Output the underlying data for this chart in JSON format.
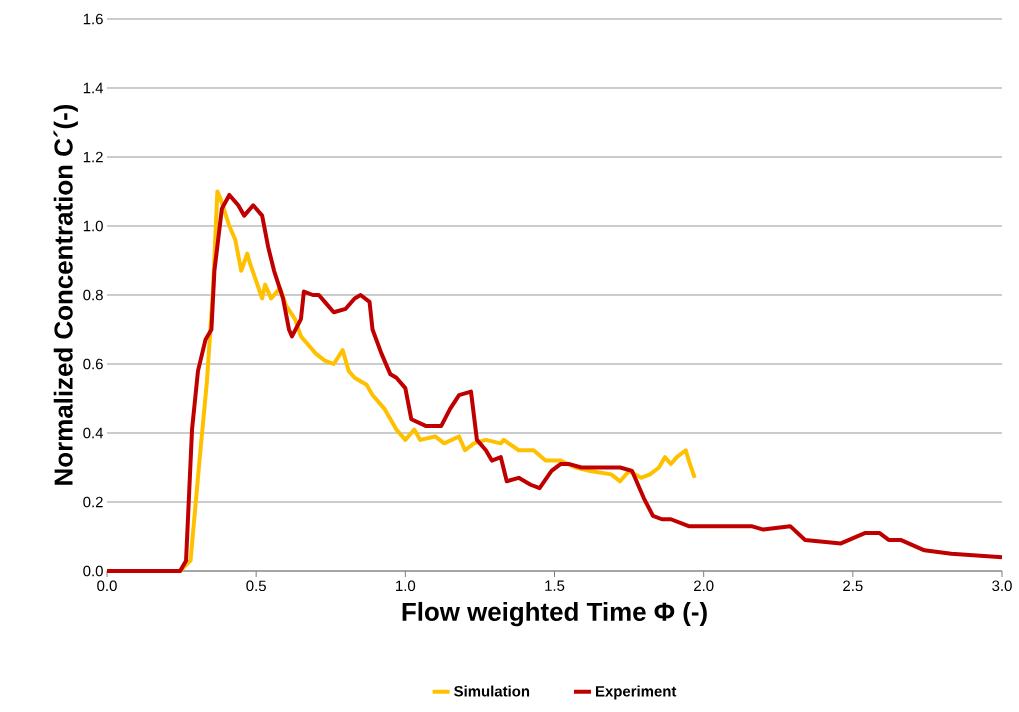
{
  "chart_data": {
    "type": "line",
    "xlabel": "Flow weighted Time  Φ (-)",
    "ylabel": "Normalized Concentration C´(-)",
    "xlim": [
      0,
      3.0
    ],
    "ylim": [
      0,
      1.6
    ],
    "xticks": [
      {
        "value": 0,
        "label": "0.0"
      },
      {
        "value": 0.5,
        "label": "0.5"
      },
      {
        "value": 1,
        "label": "1.0"
      },
      {
        "value": 1.5,
        "label": "1.5"
      },
      {
        "value": 2,
        "label": "2.0"
      },
      {
        "value": 2.5,
        "label": "2.5"
      },
      {
        "value": 3,
        "label": "3.0"
      }
    ],
    "yticks": [
      {
        "value": 0,
        "label": "0.0"
      },
      {
        "value": 0.2,
        "label": "0.2"
      },
      {
        "value": 0.4,
        "label": "0.4"
      },
      {
        "value": 0.6,
        "label": "0.6"
      },
      {
        "value": 0.8,
        "label": "0.8"
      },
      {
        "value": 1.0,
        "label": "1.0"
      },
      {
        "value": 1.2,
        "label": "1.2"
      },
      {
        "value": 1.4,
        "label": "1.4"
      },
      {
        "value": 1.6,
        "label": "1.6"
      }
    ],
    "grid": "y",
    "legend": "bottom",
    "marker": "none",
    "line_style": "solid",
    "series": [
      {
        "name": "Simulation",
        "color": "#ffc000",
        "x": [
          0,
          0.245,
          0.28,
          0.31,
          0.335,
          0.355,
          0.37,
          0.38,
          0.41,
          0.43,
          0.45,
          0.47,
          0.48,
          0.5,
          0.52,
          0.53,
          0.55,
          0.58,
          0.6,
          0.63,
          0.65,
          0.67,
          0.7,
          0.73,
          0.76,
          0.79,
          0.81,
          0.83,
          0.87,
          0.89,
          0.93,
          0.97,
          1.0,
          1.03,
          1.05,
          1.1,
          1.13,
          1.18,
          1.2,
          1.23,
          1.27,
          1.32,
          1.33,
          1.38,
          1.43,
          1.47,
          1.52,
          1.57,
          1.62,
          1.69,
          1.72,
          1.75,
          1.79,
          1.82,
          1.85,
          1.87,
          1.89,
          1.91,
          1.94,
          1.95,
          1.97
        ],
        "values": [
          0,
          0,
          0.03,
          0.32,
          0.55,
          0.81,
          1.1,
          1.08,
          1.0,
          0.96,
          0.87,
          0.92,
          0.89,
          0.84,
          0.79,
          0.83,
          0.79,
          0.82,
          0.77,
          0.73,
          0.68,
          0.66,
          0.63,
          0.61,
          0.6,
          0.64,
          0.58,
          0.56,
          0.54,
          0.51,
          0.47,
          0.41,
          0.38,
          0.41,
          0.38,
          0.39,
          0.37,
          0.39,
          0.35,
          0.37,
          0.38,
          0.37,
          0.38,
          0.35,
          0.35,
          0.32,
          0.32,
          0.3,
          0.29,
          0.28,
          0.26,
          0.29,
          0.27,
          0.28,
          0.3,
          0.33,
          0.31,
          0.33,
          0.35,
          0.32,
          0.27
        ]
      },
      {
        "name": "Experiment",
        "color": "#c00000",
        "x": [
          0,
          0.245,
          0.265,
          0.285,
          0.305,
          0.33,
          0.35,
          0.36,
          0.385,
          0.41,
          0.44,
          0.46,
          0.49,
          0.52,
          0.54,
          0.56,
          0.59,
          0.61,
          0.62,
          0.65,
          0.66,
          0.69,
          0.71,
          0.73,
          0.76,
          0.8,
          0.83,
          0.85,
          0.88,
          0.89,
          0.92,
          0.95,
          0.97,
          1.0,
          1.02,
          1.07,
          1.12,
          1.15,
          1.18,
          1.22,
          1.24,
          1.27,
          1.29,
          1.32,
          1.34,
          1.38,
          1.42,
          1.45,
          1.49,
          1.52,
          1.55,
          1.59,
          1.63,
          1.66,
          1.72,
          1.76,
          1.8,
          1.83,
          1.86,
          1.89,
          1.92,
          1.95,
          2.05,
          2.16,
          2.2,
          2.29,
          2.34,
          2.46,
          2.54,
          2.59,
          2.62,
          2.66,
          2.74,
          2.83,
          3.0
        ],
        "values": [
          0,
          0,
          0.03,
          0.41,
          0.58,
          0.67,
          0.7,
          0.87,
          1.05,
          1.09,
          1.06,
          1.03,
          1.06,
          1.03,
          0.94,
          0.87,
          0.79,
          0.7,
          0.68,
          0.73,
          0.81,
          0.8,
          0.8,
          0.78,
          0.75,
          0.76,
          0.79,
          0.8,
          0.78,
          0.7,
          0.63,
          0.57,
          0.56,
          0.53,
          0.44,
          0.42,
          0.42,
          0.47,
          0.51,
          0.52,
          0.38,
          0.35,
          0.32,
          0.33,
          0.26,
          0.27,
          0.25,
          0.24,
          0.29,
          0.31,
          0.31,
          0.3,
          0.3,
          0.3,
          0.3,
          0.29,
          0.21,
          0.16,
          0.15,
          0.15,
          0.14,
          0.13,
          0.13,
          0.13,
          0.12,
          0.13,
          0.09,
          0.08,
          0.11,
          0.11,
          0.09,
          0.09,
          0.06,
          0.05,
          0.04
        ]
      }
    ]
  }
}
